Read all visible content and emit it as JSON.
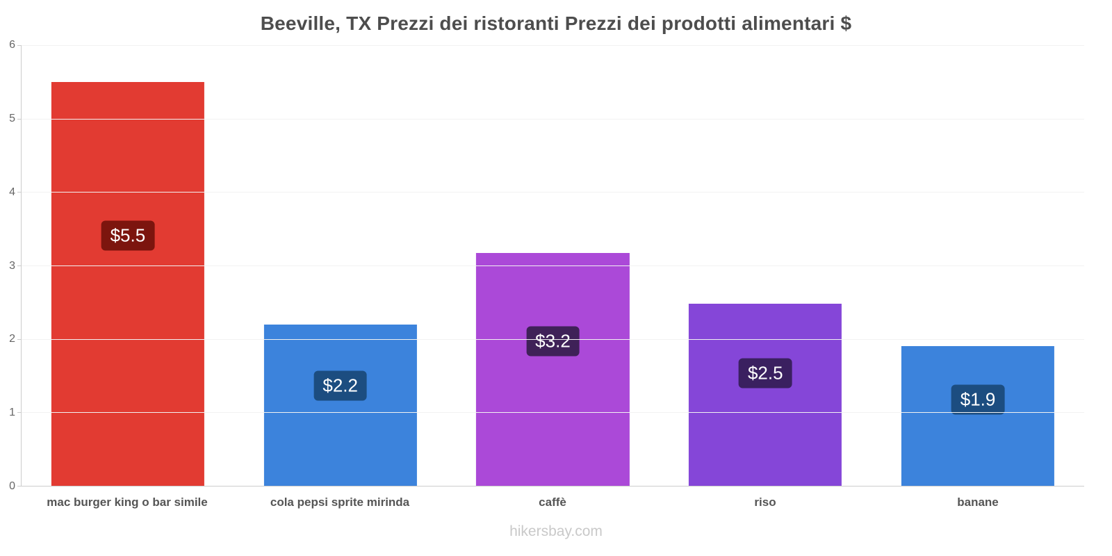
{
  "title": "Beeville, TX Prezzi dei ristoranti Prezzi dei prodotti alimentari $",
  "footer": "hikersbay.com",
  "chart_data": {
    "type": "bar",
    "title": "Beeville, TX Prezzi dei ristoranti Prezzi dei prodotti alimentari $",
    "categories": [
      "mac burger king o bar simile",
      "cola pepsi sprite mirinda",
      "caffè",
      "riso",
      "banane"
    ],
    "values": [
      5.5,
      2.2,
      3.17,
      2.48,
      1.9
    ],
    "value_labels": [
      "$5.5",
      "$2.2",
      "$3.2",
      "$2.5",
      "$1.9"
    ],
    "bar_colors": [
      "#e23b32",
      "#3c83dc",
      "#ab49d8",
      "#8546d8",
      "#3c83dc"
    ],
    "label_bg_colors": [
      "#7c150e",
      "#1c4d80",
      "#3f2158",
      "#3a2060",
      "#1c4d80"
    ],
    "xlabel": "",
    "ylabel": "",
    "ylim": [
      0,
      6
    ],
    "yticks": [
      0,
      1,
      2,
      3,
      4,
      5,
      6
    ],
    "grid": true,
    "legend_position": "none"
  }
}
